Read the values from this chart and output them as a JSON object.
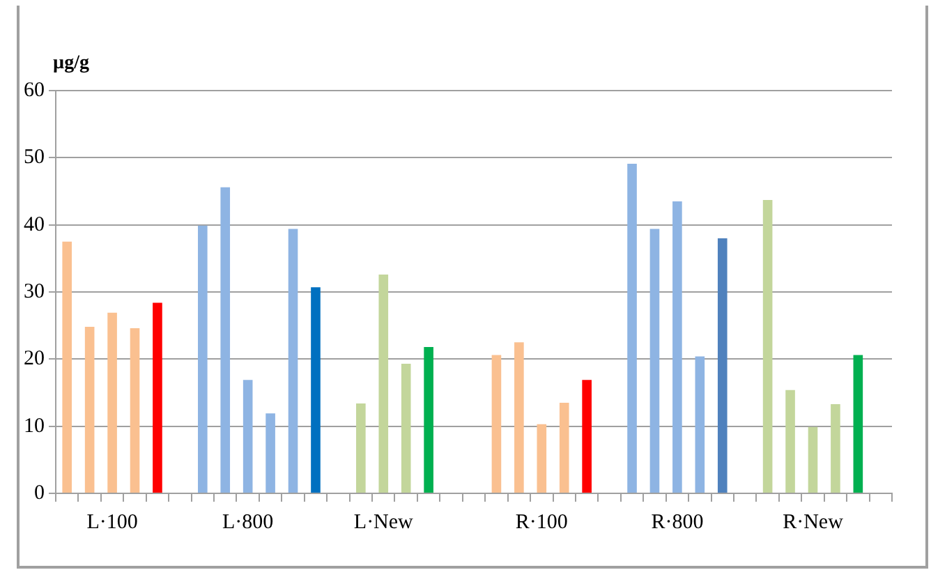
{
  "chart_data": {
    "type": "bar",
    "ylabel": "µg/g",
    "categories": [
      null,
      null,
      "L·100",
      null,
      null,
      null,
      null,
      null,
      "L·800",
      null,
      null,
      null,
      null,
      null,
      "L·New",
      null,
      null,
      null,
      null,
      null,
      null,
      "R·100",
      null,
      null,
      null,
      null,
      null,
      "R·800",
      null,
      null,
      null,
      null,
      null,
      "R·New",
      null,
      null,
      null
    ],
    "values": [
      37.5,
      24.8,
      26.9,
      24.6,
      28.4,
      null,
      39.9,
      45.6,
      16.9,
      11.9,
      39.4,
      30.7,
      null,
      13.4,
      32.6,
      19.3,
      21.8,
      null,
      null,
      20.6,
      22.5,
      10.3,
      13.5,
      16.9,
      null,
      49.1,
      39.4,
      43.5,
      20.4,
      38.0,
      null,
      43.7,
      15.4,
      9.9,
      13.3,
      20.6,
      null
    ],
    "colors": [
      "#fac090",
      "#fac090",
      "#fac090",
      "#fac090",
      "#ff0000",
      null,
      "#8eb4e3",
      "#8eb4e3",
      "#8eb4e3",
      "#8eb4e3",
      "#8eb4e3",
      "#0070c0",
      null,
      "#c3d69b",
      "#c3d69b",
      "#c3d69b",
      "#00b050",
      null,
      null,
      "#fac090",
      "#fac090",
      "#fac090",
      "#fac090",
      "#ff0000",
      null,
      "#8eb4e3",
      "#8eb4e3",
      "#8eb4e3",
      "#8eb4e3",
      "#4f81bd",
      null,
      "#c3d69b",
      "#c3d69b",
      "#c3d69b",
      "#c3d69b",
      "#00b050",
      null
    ],
    "ylim": [
      0,
      60
    ],
    "yticks": [
      0,
      10,
      20,
      30,
      40,
      50,
      60
    ],
    "grid": "y",
    "legend": false
  }
}
